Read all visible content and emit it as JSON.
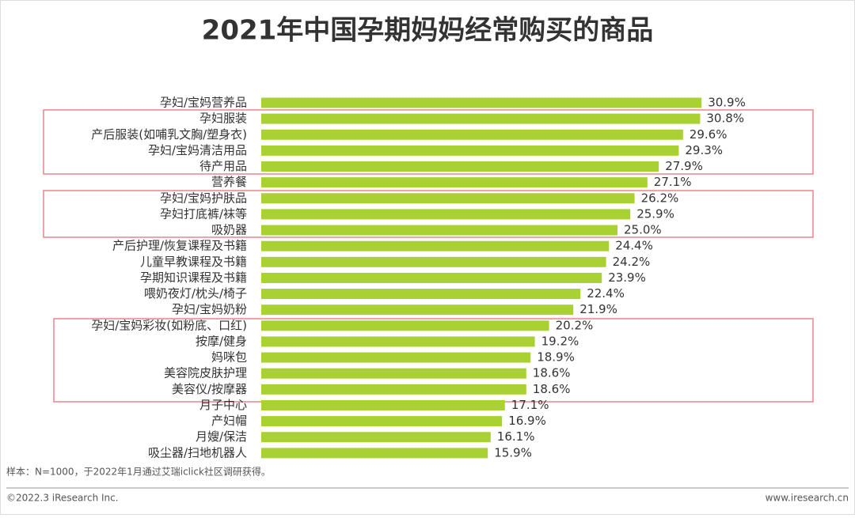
{
  "chart_data": {
    "type": "bar",
    "orientation": "horizontal",
    "title": "2021年中国孕期妈妈经常购买的商品",
    "categories": [
      "孕妇/宝妈营养品",
      "孕妇服装",
      "产后服装(如哺乳文胸/塑身衣)",
      "孕妇/宝妈清洁用品",
      "待产用品",
      "营养餐",
      "孕妇/宝妈护肤品",
      "孕妇打底裤/袜等",
      "吸奶器",
      "产后护理/恢复课程及书籍",
      "儿童早教课程及书籍",
      "孕期知识课程及书籍",
      "喂奶夜灯/枕头/椅子",
      "孕妇/宝妈奶粉",
      "孕妇/宝妈彩妆(如粉底、口红)",
      "按摩/健身",
      "妈咪包",
      "美容院皮肤护理",
      "美容仪/按摩器",
      "月子中心",
      "产妇帽",
      "月嫂/保洁",
      "吸尘器/扫地机器人"
    ],
    "values": [
      30.9,
      30.8,
      29.6,
      29.3,
      27.9,
      27.1,
      26.2,
      25.9,
      25,
      24.4,
      24.2,
      23.9,
      22.4,
      21.9,
      20.2,
      19.2,
      18.9,
      18.6,
      18.6,
      17.1,
      16.9,
      16.1,
      15.9
    ],
    "value_labels": [
      "30.9%",
      "30.8%",
      "29.6%",
      "29.3%",
      "27.9%",
      "27.1%",
      "26.2%",
      "25.9%",
      "25.0%",
      "24.4%",
      "24.2%",
      "23.9%",
      "22.4%",
      "21.9%",
      "20.2%",
      "19.2%",
      "18.9%",
      "18.6%",
      "18.6%",
      "17.1%",
      "16.9%",
      "16.1%",
      "15.9%"
    ],
    "color": "#a9d134",
    "note": "样本：N=1000，于2022年1月通过艾瑞iclick社区调研获得。",
    "copyright": "©2022.3 iResearch Inc.",
    "website": "www.iresearch.cn"
  }
}
